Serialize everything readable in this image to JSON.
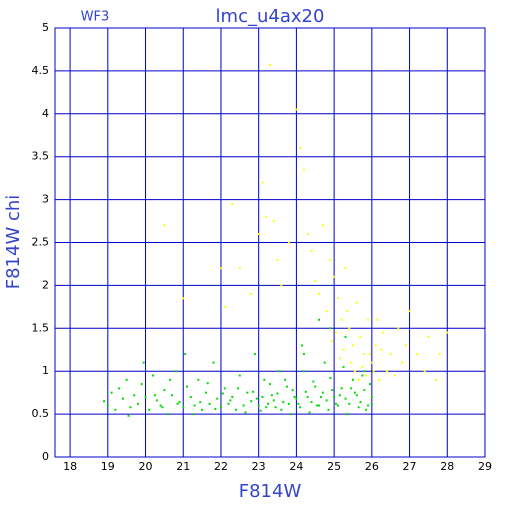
{
  "chart_data": {
    "type": "scatter",
    "title": "lmc_u4ax20",
    "subtitle": "WF3",
    "xlabel": "F814W",
    "ylabel": "F814W chi",
    "xlim": [
      17.6,
      29
    ],
    "ylim": [
      0,
      5
    ],
    "xticks": [
      18,
      19,
      20,
      21,
      22,
      23,
      24,
      25,
      26,
      27,
      28,
      29
    ],
    "yticks": [
      0,
      0.5,
      1,
      1.5,
      2,
      2.5,
      3,
      3.5,
      4,
      4.5,
      5
    ],
    "grid": true,
    "axis_color": "#0000cc",
    "label_color": "#3344cc",
    "series": [
      {
        "color": "#00dd00",
        "x": [
          18.9,
          19.0,
          19.1,
          19.2,
          19.3,
          19.4,
          19.5,
          19.6,
          19.7,
          19.8,
          19.9,
          20.0,
          20.1,
          20.2,
          20.3,
          20.4,
          20.5,
          20.6,
          20.7,
          20.8,
          20.9,
          21.0,
          21.1,
          21.2,
          21.3,
          21.4,
          21.5,
          21.6,
          21.7,
          21.8,
          21.9,
          22.0,
          22.1,
          22.2,
          22.3,
          22.4,
          22.5,
          22.6,
          22.7,
          22.8,
          22.9,
          23.0,
          23.1,
          23.2,
          23.3,
          23.4,
          23.5,
          23.6,
          23.7,
          23.8,
          23.9,
          24.0,
          24.1,
          24.2,
          24.3,
          24.4,
          24.5,
          24.6,
          24.7,
          24.8,
          24.9,
          25.0,
          25.1,
          25.2,
          25.3,
          25.4,
          25.5,
          25.6,
          25.7,
          25.8,
          25.9,
          26.0,
          25.95,
          25.85,
          25.75,
          25.65,
          25.55,
          25.45,
          25.35,
          25.25,
          25.15,
          25.05,
          24.95,
          24.85,
          24.75,
          24.65,
          24.55,
          24.45,
          24.35,
          24.25,
          24.15,
          24.05,
          23.95,
          23.85,
          23.75,
          23.65,
          23.55,
          23.45,
          23.35,
          23.25,
          23.15,
          23.05,
          22.95,
          22.85,
          22.65,
          22.45,
          22.25,
          22.05,
          21.85,
          21.65,
          21.45,
          21.25,
          21.05,
          20.85,
          20.65,
          20.45,
          20.25,
          19.95,
          19.55,
          24.6,
          24.9,
          25.3,
          24.2,
          25.8,
          26.0
        ],
        "values": [
          0.65,
          0.6,
          0.75,
          0.55,
          0.8,
          0.68,
          0.9,
          0.58,
          0.72,
          0.62,
          0.85,
          0.7,
          0.55,
          0.95,
          0.66,
          0.6,
          0.78,
          0.5,
          0.72,
          1.0,
          0.64,
          0.58,
          0.82,
          0.7,
          0.6,
          0.9,
          0.55,
          0.75,
          0.62,
          1.1,
          0.68,
          0.58,
          0.8,
          0.62,
          0.7,
          0.55,
          0.95,
          0.6,
          0.75,
          0.65,
          1.2,
          0.6,
          0.7,
          0.58,
          0.85,
          0.66,
          0.74,
          0.55,
          0.9,
          0.62,
          0.78,
          0.68,
          0.58,
          1.0,
          0.7,
          0.64,
          0.82,
          0.6,
          0.75,
          0.66,
          0.92,
          0.7,
          0.6,
          0.8,
          0.68,
          0.62,
          0.9,
          0.72,
          0.64,
          0.78,
          0.6,
          0.7,
          0.85,
          0.55,
          0.95,
          0.58,
          0.75,
          0.8,
          0.5,
          1.05,
          0.72,
          0.62,
          0.78,
          0.55,
          1.1,
          0.7,
          0.6,
          0.88,
          0.52,
          0.76,
          1.3,
          0.62,
          0.7,
          0.5,
          0.82,
          0.64,
          1.0,
          0.58,
          0.72,
          0.62,
          0.9,
          0.54,
          0.68,
          0.76,
          0.52,
          0.8,
          0.66,
          0.74,
          0.56,
          0.86,
          0.64,
          0.5,
          1.2,
          0.62,
          0.9,
          0.58,
          0.72,
          1.1,
          0.48,
          1.6,
          1.5,
          1.4,
          1.2,
          1.0,
          0.62
        ]
      },
      {
        "color": "#ffff00",
        "x": [
          20.5,
          21.0,
          22.0,
          22.1,
          22.3,
          22.5,
          22.8,
          23.0,
          23.1,
          23.2,
          23.3,
          23.4,
          23.5,
          23.6,
          23.8,
          24.0,
          24.1,
          24.2,
          24.3,
          24.4,
          24.5,
          24.6,
          24.7,
          24.8,
          24.9,
          25.0,
          25.1,
          25.2,
          25.3,
          25.4,
          25.5,
          25.6,
          25.7,
          25.8,
          25.9,
          26.0,
          26.1,
          26.2,
          26.3,
          26.4,
          26.5,
          26.6,
          26.7,
          26.8,
          26.9,
          27.0,
          27.2,
          27.4,
          27.5,
          27.7,
          27.8,
          28.0,
          25.45,
          25.55,
          25.65,
          25.75,
          25.85,
          25.95,
          25.35,
          25.25,
          25.15,
          26.05,
          26.15,
          26.25,
          25.05,
          24.95
        ],
        "values": [
          2.7,
          1.85,
          2.2,
          1.75,
          2.95,
          2.2,
          1.9,
          2.6,
          3.2,
          2.8,
          4.57,
          2.75,
          2.3,
          2.0,
          2.5,
          4.05,
          3.6,
          3.35,
          2.6,
          2.4,
          2.05,
          1.9,
          2.7,
          1.7,
          2.3,
          2.1,
          1.85,
          1.6,
          2.2,
          1.5,
          1.3,
          1.8,
          1.4,
          1.2,
          1.6,
          1.1,
          1.3,
          0.9,
          1.45,
          1.0,
          1.2,
          0.95,
          1.5,
          1.1,
          1.3,
          1.7,
          1.2,
          1.0,
          1.4,
          0.9,
          1.2,
          1.45,
          1.1,
          1.0,
          0.9,
          1.05,
          0.95,
          1.2,
          1.7,
          1.25,
          1.15,
          1.0,
          1.6,
          1.25,
          1.45,
          1.35
        ]
      }
    ]
  }
}
